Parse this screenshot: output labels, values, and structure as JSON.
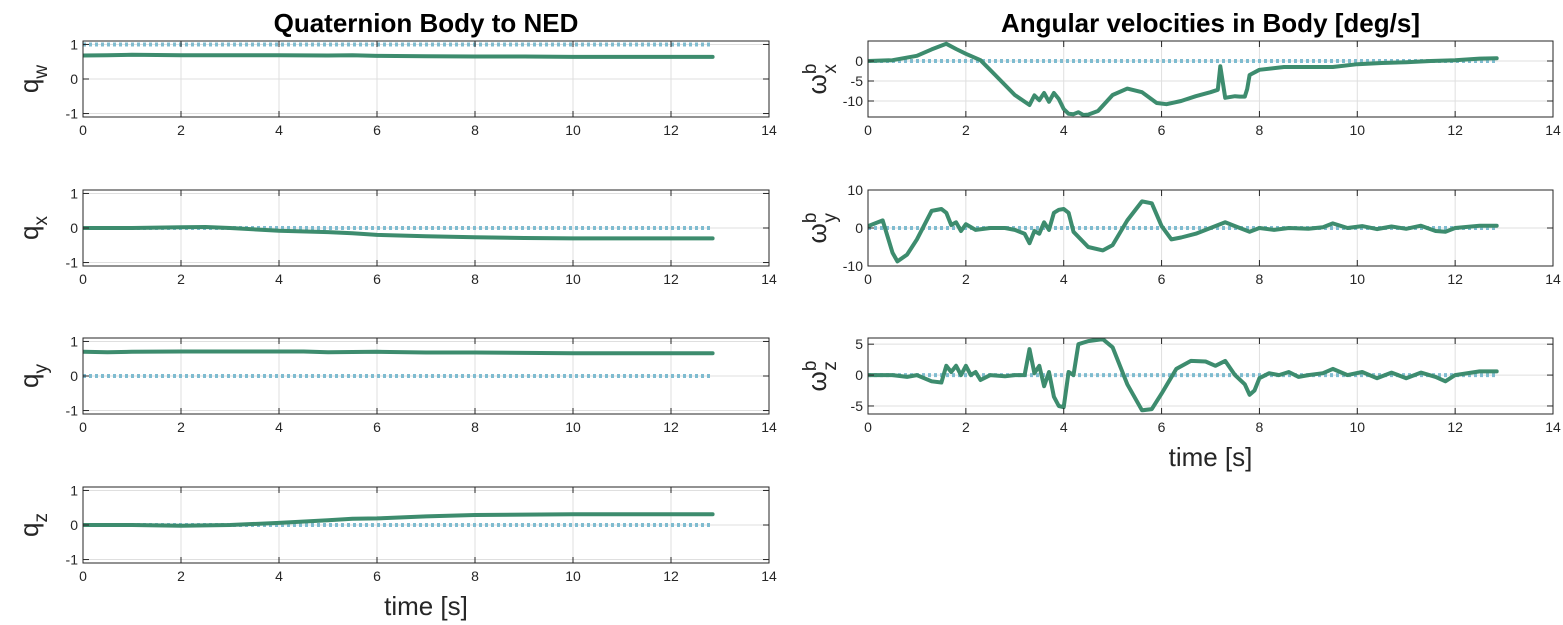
{
  "chart_data": [
    {
      "type": "line",
      "id": "qw",
      "title": "Quaternion Body to NED",
      "ylabel": {
        "main": "q",
        "sub": "w"
      },
      "xlabel": "",
      "xlim": [
        0,
        14
      ],
      "ylim": [
        -1.1,
        1.1
      ],
      "xticks": [
        0,
        2,
        4,
        6,
        8,
        10,
        12,
        14
      ],
      "yticks": [
        -1,
        0,
        1
      ],
      "grid": true,
      "series": [
        {
          "role": "reference",
          "x": [
            0,
            12.85
          ],
          "y": [
            1,
            1
          ]
        },
        {
          "role": "estimate",
          "x": [
            0,
            0.5,
            1,
            2,
            3,
            4,
            5,
            5.5,
            6,
            7,
            8,
            9,
            10,
            11,
            12,
            12.85
          ],
          "y": [
            0.68,
            0.69,
            0.7,
            0.69,
            0.69,
            0.69,
            0.68,
            0.69,
            0.67,
            0.66,
            0.65,
            0.65,
            0.64,
            0.64,
            0.64,
            0.64
          ]
        }
      ]
    },
    {
      "type": "line",
      "id": "qx",
      "title": "",
      "ylabel": {
        "main": "q",
        "sub": "x"
      },
      "xlabel": "",
      "xlim": [
        0,
        14
      ],
      "ylim": [
        -1.1,
        1.1
      ],
      "xticks": [
        0,
        2,
        4,
        6,
        8,
        10,
        12,
        14
      ],
      "yticks": [
        -1,
        0,
        1
      ],
      "grid": true,
      "series": [
        {
          "role": "reference",
          "x": [
            0,
            12.85
          ],
          "y": [
            0,
            0
          ]
        },
        {
          "role": "estimate",
          "x": [
            0,
            1,
            2,
            2.5,
            3,
            4,
            5,
            5.5,
            6,
            7,
            8,
            9,
            10,
            11,
            12,
            12.85
          ],
          "y": [
            0.0,
            0.0,
            0.02,
            0.03,
            0.0,
            -0.08,
            -0.12,
            -0.15,
            -0.2,
            -0.24,
            -0.27,
            -0.29,
            -0.3,
            -0.3,
            -0.3,
            -0.3
          ]
        }
      ]
    },
    {
      "type": "line",
      "id": "qy",
      "title": "",
      "ylabel": {
        "main": "q",
        "sub": "y"
      },
      "xlabel": "",
      "xlim": [
        0,
        14
      ],
      "ylim": [
        -1.1,
        1.1
      ],
      "xticks": [
        0,
        2,
        4,
        6,
        8,
        10,
        12,
        14
      ],
      "yticks": [
        -1,
        0,
        1
      ],
      "grid": true,
      "series": [
        {
          "role": "reference",
          "x": [
            0,
            12.85
          ],
          "y": [
            0,
            0
          ]
        },
        {
          "role": "estimate",
          "x": [
            0,
            0.5,
            1,
            2,
            3,
            4,
            4.5,
            5,
            6,
            7,
            8,
            9,
            10,
            11,
            12,
            12.85
          ],
          "y": [
            0.7,
            0.69,
            0.7,
            0.71,
            0.71,
            0.71,
            0.71,
            0.69,
            0.7,
            0.68,
            0.68,
            0.67,
            0.66,
            0.66,
            0.66,
            0.66
          ]
        }
      ]
    },
    {
      "type": "line",
      "id": "qz",
      "title": "",
      "ylabel": {
        "main": "q",
        "sub": "z"
      },
      "xlabel": "time [s]",
      "xlim": [
        0,
        14
      ],
      "ylim": [
        -1.1,
        1.1
      ],
      "xticks": [
        0,
        2,
        4,
        6,
        8,
        10,
        12,
        14
      ],
      "yticks": [
        -1,
        0,
        1
      ],
      "grid": true,
      "series": [
        {
          "role": "reference",
          "x": [
            0,
            12.85
          ],
          "y": [
            0,
            0
          ]
        },
        {
          "role": "estimate",
          "x": [
            0,
            1,
            2,
            3,
            4,
            5,
            5.5,
            6,
            7,
            8,
            9,
            10,
            11,
            12,
            12.85
          ],
          "y": [
            0.0,
            0.0,
            -0.02,
            0.0,
            0.06,
            0.14,
            0.18,
            0.19,
            0.25,
            0.29,
            0.3,
            0.31,
            0.31,
            0.31,
            0.31
          ]
        }
      ]
    },
    {
      "type": "line",
      "id": "wx",
      "title": "Angular velocities in Body [deg/s]",
      "ylabel": {
        "main": "ω",
        "sup": "b",
        "sub": "x"
      },
      "xlabel": "",
      "xlim": [
        0,
        14
      ],
      "ylim": [
        -14,
        5
      ],
      "xticks": [
        0,
        2,
        4,
        6,
        8,
        10,
        12,
        14
      ],
      "yticks": [
        -10,
        -5,
        0
      ],
      "grid": true,
      "series": [
        {
          "role": "reference",
          "x": [
            0,
            12.85
          ],
          "y": [
            0,
            0
          ]
        },
        {
          "role": "estimate",
          "x": [
            0,
            0.5,
            1,
            1.3,
            1.6,
            1.8,
            2.0,
            2.3,
            2.6,
            3.0,
            3.3,
            3.4,
            3.5,
            3.6,
            3.7,
            3.8,
            3.9,
            4.0,
            4.1,
            4.2,
            4.3,
            4.4,
            4.5,
            4.7,
            5.0,
            5.3,
            5.6,
            5.9,
            6.1,
            6.4,
            6.7,
            7.0,
            7.15,
            7.2,
            7.3,
            7.5,
            7.6,
            7.7,
            7.75,
            7.8,
            8.0,
            8.5,
            9.0,
            9.5,
            10,
            10.5,
            11,
            11.5,
            12,
            12.5,
            12.85
          ],
          "y": [
            0,
            0.2,
            1.3,
            2.9,
            4.3,
            3.0,
            1.8,
            0.2,
            -3.5,
            -8.5,
            -11.0,
            -8.6,
            -9.8,
            -8.0,
            -10.2,
            -8.0,
            -9.5,
            -12.0,
            -13.2,
            -13.3,
            -12.8,
            -13.5,
            -13.4,
            -12.5,
            -8.5,
            -6.9,
            -7.8,
            -10.5,
            -10.8,
            -10.0,
            -8.8,
            -7.8,
            -7.2,
            -1.3,
            -9.2,
            -8.8,
            -8.9,
            -8.9,
            -7.0,
            -3.5,
            -2.2,
            -1.5,
            -1.5,
            -1.5,
            -0.8,
            -0.5,
            -0.3,
            0.0,
            0.2,
            0.6,
            0.7
          ]
        }
      ]
    },
    {
      "type": "line",
      "id": "wy",
      "title": "",
      "ylabel": {
        "main": "ω",
        "sup": "b",
        "sub": "y"
      },
      "xlabel": "",
      "xlim": [
        0,
        14
      ],
      "ylim": [
        -10,
        10
      ],
      "xticks": [
        0,
        2,
        4,
        6,
        8,
        10,
        12,
        14
      ],
      "yticks": [
        -10,
        0,
        10
      ],
      "grid": true,
      "series": [
        {
          "role": "reference",
          "x": [
            0,
            12.85
          ],
          "y": [
            0,
            0
          ]
        },
        {
          "role": "estimate",
          "x": [
            0,
            0.3,
            0.5,
            0.6,
            0.8,
            1.0,
            1.3,
            1.5,
            1.6,
            1.7,
            1.8,
            1.9,
            2.0,
            2.2,
            2.5,
            2.8,
            3.0,
            3.2,
            3.3,
            3.4,
            3.5,
            3.6,
            3.7,
            3.8,
            3.9,
            4.0,
            4.1,
            4.2,
            4.5,
            4.8,
            5.0,
            5.3,
            5.6,
            5.8,
            6.0,
            6.2,
            6.4,
            6.7,
            7.0,
            7.3,
            7.5,
            7.8,
            8.0,
            8.3,
            8.6,
            9.0,
            9.3,
            9.5,
            9.8,
            10.1,
            10.4,
            10.7,
            11.0,
            11.3,
            11.6,
            11.8,
            12.0,
            12.5,
            12.85
          ],
          "y": [
            0.5,
            2.0,
            -6.5,
            -8.8,
            -7.0,
            -3.0,
            4.5,
            5.0,
            4.0,
            0.8,
            1.5,
            -0.8,
            1.0,
            -0.5,
            0.0,
            0.0,
            -0.5,
            -1.5,
            -4.0,
            -0.8,
            -1.5,
            1.5,
            -0.5,
            4.0,
            4.8,
            5.0,
            4.0,
            -1.0,
            -5.0,
            -5.9,
            -4.5,
            2.0,
            7.0,
            6.5,
            0.5,
            -3.0,
            -2.5,
            -1.5,
            0.0,
            1.5,
            0.5,
            -1.0,
            0.0,
            -0.5,
            0.0,
            -0.2,
            0.2,
            1.2,
            0.0,
            0.5,
            -0.3,
            0.4,
            -0.2,
            0.6,
            -0.8,
            -1.0,
            0.0,
            0.6,
            0.6
          ]
        }
      ]
    },
    {
      "type": "line",
      "id": "wz",
      "title": "",
      "ylabel": {
        "main": "ω",
        "sup": "b",
        "sub": "z"
      },
      "xlabel": "time [s]",
      "xlim": [
        0,
        14
      ],
      "ylim": [
        -6.3,
        6
      ],
      "xticks": [
        0,
        2,
        4,
        6,
        8,
        10,
        12,
        14
      ],
      "yticks": [
        -5,
        0,
        5
      ],
      "grid": true,
      "series": [
        {
          "role": "reference",
          "x": [
            0,
            12.85
          ],
          "y": [
            0,
            0
          ]
        },
        {
          "role": "estimate",
          "x": [
            0,
            0.5,
            0.8,
            1.0,
            1.3,
            1.5,
            1.6,
            1.7,
            1.8,
            1.9,
            2.0,
            2.1,
            2.2,
            2.3,
            2.5,
            2.8,
            3.0,
            3.2,
            3.3,
            3.4,
            3.5,
            3.6,
            3.7,
            3.8,
            3.9,
            4.0,
            4.1,
            4.2,
            4.3,
            4.5,
            4.8,
            5.0,
            5.3,
            5.6,
            5.8,
            6.0,
            6.3,
            6.6,
            6.9,
            7.1,
            7.3,
            7.5,
            7.7,
            7.8,
            7.9,
            8.0,
            8.2,
            8.4,
            8.6,
            8.8,
            9.0,
            9.3,
            9.5,
            9.8,
            10.1,
            10.4,
            10.7,
            11.0,
            11.3,
            11.6,
            11.8,
            12.0,
            12.5,
            12.85
          ],
          "y": [
            0,
            0,
            -0.3,
            0,
            -1.0,
            -1.2,
            1.5,
            0.5,
            1.5,
            0.0,
            1.5,
            0.0,
            0.5,
            -0.8,
            0.0,
            -0.2,
            0.0,
            0.0,
            4.2,
            0.3,
            1.5,
            -1.8,
            0.5,
            -3.5,
            -5.0,
            -5.2,
            0.5,
            0.0,
            5.0,
            5.5,
            5.8,
            4.5,
            -1.5,
            -5.7,
            -5.5,
            -3.0,
            1.0,
            2.3,
            2.2,
            1.5,
            2.3,
            0.0,
            -1.5,
            -3.2,
            -2.5,
            -0.5,
            0.3,
            0.0,
            0.5,
            -0.3,
            0.0,
            0.3,
            1.0,
            0.0,
            0.5,
            -0.5,
            0.4,
            -0.5,
            0.4,
            -0.3,
            -1.0,
            0.0,
            0.6,
            0.6
          ]
        }
      ]
    }
  ],
  "colors": {
    "estimate": "#3d8c6e",
    "reference": "#7fbcd0",
    "axis": "#262626",
    "grid": "#dfdfdf"
  }
}
